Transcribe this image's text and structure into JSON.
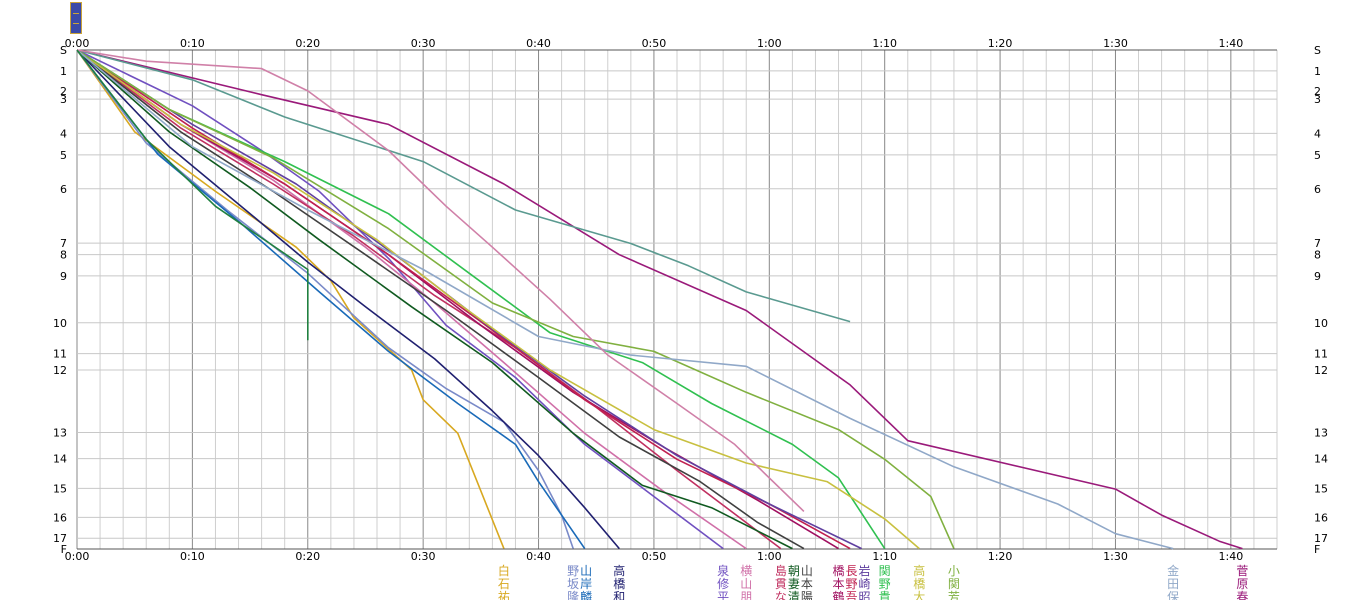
{
  "chart_data": {
    "type": "line",
    "x_ticks": [
      "0:00",
      "0:10",
      "0:20",
      "0:30",
      "0:40",
      "0:50",
      "1:00",
      "1:10",
      "1:20",
      "1:30",
      "1:40"
    ],
    "y_ticks": [
      "S",
      "1",
      "2",
      "3",
      "4",
      "5",
      "6",
      "7",
      "8",
      "9",
      "10",
      "11",
      "12",
      "13",
      "14",
      "15",
      "16",
      "17",
      "F"
    ],
    "xlim_min": [
      0,
      104
    ],
    "checkpoint_positions": [
      0,
      0.56,
      1.1,
      1.32,
      2.24,
      2.82,
      3.73,
      5.19,
      5.5,
      6.07,
      7.33,
      8.16,
      8.6,
      10.28,
      10.98,
      11.78,
      12.56,
      13.12,
      13.41
    ],
    "grid": true,
    "axes": "top-and-bottom",
    "series": [
      {
        "name_lines": [
          "白",
          "石",
          "祐"
        ],
        "color": "#d8a820",
        "points": [
          [
            0,
            0
          ],
          [
            5,
            2.2
          ],
          [
            12,
            3.8
          ],
          [
            19,
            5.3
          ],
          [
            22,
            6.2
          ],
          [
            24,
            7.2
          ],
          [
            29,
            8.6
          ],
          [
            30,
            9.4
          ],
          [
            33,
            10.3
          ],
          [
            37,
            13.4
          ]
        ]
      },
      {
        "name_lines": [
          "野",
          "坂",
          "隆"
        ],
        "color": "#7a8ac8",
        "points": [
          [
            0,
            0
          ],
          [
            6,
            2.5
          ],
          [
            13,
            4.3
          ],
          [
            20,
            6.0
          ],
          [
            27,
            8.0
          ],
          [
            32,
            9.1
          ],
          [
            37,
            10.0
          ],
          [
            40,
            11.3
          ],
          [
            42,
            12.5
          ],
          [
            43,
            13.4
          ]
        ]
      },
      {
        "name_lines": [
          "山",
          "岸",
          "麟"
        ],
        "color": "#1a6ab8",
        "points": [
          [
            0,
            0
          ],
          [
            7,
            2.8
          ],
          [
            14,
            4.6
          ],
          [
            21,
            6.5
          ],
          [
            27,
            8.1
          ],
          [
            33,
            9.5
          ],
          [
            38,
            10.6
          ],
          [
            40,
            11.6
          ],
          [
            44,
            13.4
          ]
        ]
      },
      {
        "name_lines": [
          "高",
          "橋",
          "和"
        ],
        "color": "#202070",
        "points": [
          [
            0,
            0
          ],
          [
            8,
            2.6
          ],
          [
            15,
            4.4
          ],
          [
            20,
            5.7
          ],
          [
            25,
            6.9
          ],
          [
            31,
            8.3
          ],
          [
            36,
            9.7
          ],
          [
            40,
            10.9
          ],
          [
            44,
            12.3
          ],
          [
            47,
            13.4
          ]
        ]
      },
      {
        "name_lines": [
          "泉",
          "修",
          "平"
        ],
        "color": "#7050c0",
        "points": [
          [
            0,
            0
          ],
          [
            10,
            1.5
          ],
          [
            16,
            2.7
          ],
          [
            21,
            3.8
          ],
          [
            27,
            5.6
          ],
          [
            32,
            7.4
          ],
          [
            38,
            8.8
          ],
          [
            44,
            10.6
          ],
          [
            50,
            12.0
          ],
          [
            56,
            13.4
          ]
        ]
      },
      {
        "name_lines": [
          "横",
          "山",
          "朋"
        ],
        "color": "#d070a8",
        "points": [
          [
            0,
            0
          ],
          [
            9,
            2.0
          ],
          [
            17,
            3.5
          ],
          [
            25,
            5.3
          ],
          [
            31,
            6.8
          ],
          [
            37,
            8.4
          ],
          [
            44,
            10.3
          ],
          [
            51,
            11.9
          ],
          [
            58,
            13.4
          ]
        ]
      },
      {
        "name_lines": [
          "島",
          "貫",
          "な"
        ],
        "color": "#c03060",
        "points": [
          [
            0,
            0
          ],
          [
            9,
            2.1
          ],
          [
            17,
            3.6
          ],
          [
            24,
            5.0
          ],
          [
            31,
            6.6
          ],
          [
            38,
            8.0
          ],
          [
            45,
            9.6
          ],
          [
            52,
            11.3
          ],
          [
            61,
            13.4
          ]
        ]
      },
      {
        "name_lines": [
          "朝",
          "妻",
          "清"
        ],
        "color": "#105a20",
        "points": [
          [
            0,
            0
          ],
          [
            8,
            2.2
          ],
          [
            15,
            3.7
          ],
          [
            21,
            5.1
          ],
          [
            29,
            6.9
          ],
          [
            36,
            8.4
          ],
          [
            43,
            10.3
          ],
          [
            49,
            11.7
          ],
          [
            55,
            12.3
          ],
          [
            62,
            13.4
          ]
        ]
      },
      {
        "name_lines": [
          "山",
          "本",
          "陽"
        ],
        "color": "#404040",
        "points": [
          [
            0,
            0
          ],
          [
            9,
            2.2
          ],
          [
            17,
            3.8
          ],
          [
            25,
            5.5
          ],
          [
            32,
            7.0
          ],
          [
            40,
            8.8
          ],
          [
            47,
            10.4
          ],
          [
            54,
            11.6
          ],
          [
            59,
            12.7
          ],
          [
            63,
            13.4
          ]
        ]
      },
      {
        "name_lines": [
          "橋",
          "本",
          "鶴"
        ],
        "color": "#a01060",
        "points": [
          [
            0,
            0
          ],
          [
            9,
            2.0
          ],
          [
            18,
            3.6
          ],
          [
            27,
            5.5
          ],
          [
            35,
            7.4
          ],
          [
            43,
            9.2
          ],
          [
            51,
            10.7
          ],
          [
            59,
            12.1
          ],
          [
            66,
            13.4
          ]
        ]
      },
      {
        "name_lines": [
          "長",
          "野",
          "吾"
        ],
        "color": "#c02050",
        "points": [
          [
            0,
            0
          ],
          [
            10,
            2.1
          ],
          [
            18,
            3.6
          ],
          [
            27,
            5.5
          ],
          [
            35,
            7.3
          ],
          [
            44,
            9.4
          ],
          [
            52,
            11.0
          ],
          [
            60,
            12.2
          ],
          [
            67,
            13.4
          ]
        ]
      },
      {
        "name_lines": [
          "岩",
          "崎",
          "昭"
        ],
        "color": "#6040a0",
        "points": [
          [
            0,
            0
          ],
          [
            10,
            2.0
          ],
          [
            19,
            3.6
          ],
          [
            28,
            5.6
          ],
          [
            36,
            7.5
          ],
          [
            44,
            9.3
          ],
          [
            52,
            10.9
          ],
          [
            60,
            12.2
          ],
          [
            68,
            13.4
          ]
        ]
      },
      {
        "name_lines": [
          "関",
          "野",
          "貴"
        ],
        "color": "#30c050",
        "points": [
          [
            0,
            0
          ],
          [
            8,
            1.6
          ],
          [
            18,
            3.0
          ],
          [
            27,
            4.4
          ],
          [
            34,
            6.0
          ],
          [
            41,
            7.6
          ],
          [
            49,
            8.4
          ],
          [
            55,
            9.5
          ],
          [
            62,
            10.6
          ],
          [
            66,
            11.5
          ],
          [
            70,
            13.4
          ]
        ]
      },
      {
        "name_lines": [
          "高",
          "橋",
          "大"
        ],
        "color": "#c8c040",
        "points": [
          [
            0,
            0
          ],
          [
            9,
            2.0
          ],
          [
            17,
            3.3
          ],
          [
            26,
            5.1
          ],
          [
            33,
            6.8
          ],
          [
            41,
            8.6
          ],
          [
            50,
            10.2
          ],
          [
            58,
            11.1
          ],
          [
            65,
            11.6
          ],
          [
            70,
            12.6
          ],
          [
            73,
            13.4
          ]
        ]
      },
      {
        "name_lines": [
          "小",
          "関",
          "芳"
        ],
        "color": "#80b040",
        "points": [
          [
            0,
            0
          ],
          [
            8,
            1.6
          ],
          [
            17,
            2.9
          ],
          [
            27,
            4.8
          ],
          [
            36,
            6.8
          ],
          [
            43,
            7.7
          ],
          [
            50,
            8.1
          ],
          [
            58,
            9.2
          ],
          [
            66,
            10.2
          ],
          [
            70,
            11.0
          ],
          [
            74,
            12.0
          ],
          [
            76,
            13.4
          ]
        ]
      },
      {
        "name_lines": [
          "金",
          "田",
          "保"
        ],
        "color": "#90a8c8",
        "points": [
          [
            0,
            0
          ],
          [
            10,
            2.6
          ],
          [
            20,
            4.3
          ],
          [
            30,
            5.9
          ],
          [
            40,
            7.7
          ],
          [
            48,
            8.2
          ],
          [
            58,
            8.5
          ],
          [
            67,
            9.9
          ],
          [
            76,
            11.2
          ],
          [
            85,
            12.2
          ],
          [
            90,
            13.0
          ],
          [
            95,
            13.4
          ]
        ]
      },
      {
        "name_lines": [
          "菅",
          "原",
          "春"
        ],
        "color": "#9a1a7a",
        "points": [
          [
            0,
            0
          ],
          [
            16,
            1.2
          ],
          [
            27,
            2.0
          ],
          [
            37,
            3.6
          ],
          [
            47,
            5.5
          ],
          [
            58,
            7.0
          ],
          [
            67,
            9.0
          ],
          [
            72,
            10.5
          ],
          [
            90,
            11.8
          ],
          [
            94,
            12.5
          ],
          [
            99,
            13.2
          ],
          [
            101,
            13.4
          ]
        ]
      },
      {
        "name_lines": [
          "",
          ""
        ],
        "color": "#5a9a90",
        "points": [
          [
            0,
            0
          ],
          [
            10,
            0.8
          ],
          [
            18,
            1.8
          ],
          [
            30,
            3.0
          ],
          [
            38,
            4.3
          ],
          [
            48,
            5.2
          ],
          [
            53,
            5.8
          ],
          [
            58,
            6.5
          ],
          [
            67,
            7.3
          ]
        ]
      },
      {
        "name_lines": [
          "",
          ""
        ],
        "color": "#d080a8",
        "points": [
          [
            0,
            0
          ],
          [
            6,
            0.3
          ],
          [
            16,
            0.5
          ],
          [
            20,
            1.1
          ],
          [
            27,
            2.7
          ],
          [
            32,
            4.2
          ],
          [
            36,
            5.3
          ],
          [
            41,
            6.7
          ],
          [
            46,
            8.2
          ],
          [
            52,
            9.5
          ],
          [
            57,
            10.6
          ],
          [
            63,
            12.4
          ]
        ]
      },
      {
        "name_lines": [
          "",
          ""
        ],
        "color": "#208040",
        "points": [
          [
            0,
            0
          ],
          [
            6,
            2.4
          ],
          [
            12,
            4.2
          ],
          [
            20,
            5.9
          ],
          [
            20,
            7.8
          ]
        ]
      }
    ]
  }
}
